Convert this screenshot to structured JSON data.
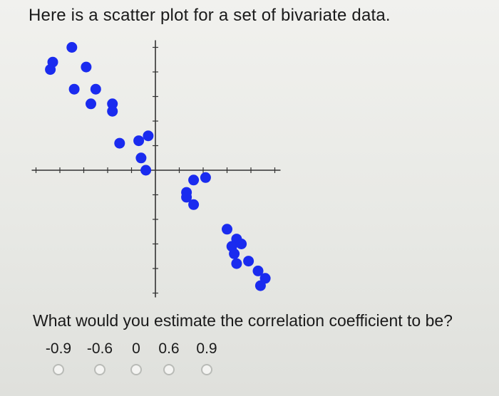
{
  "prompt_text": "Here is a scatter plot for a set of bivariate data.",
  "question": {
    "text": "What would you estimate the correlation coefficient to be?",
    "options": [
      "-0.9",
      "-0.6",
      "0",
      "0.6",
      "0.9"
    ]
  },
  "colors": {
    "point": "#1a2bef",
    "axis": "#333333",
    "radio_border": "#b9bbb7"
  },
  "chart_data": {
    "type": "scatter",
    "title": "",
    "xlabel": "",
    "ylabel": "",
    "grid": false,
    "xlim": [
      -5,
      5
    ],
    "ylim": [
      -5,
      5
    ],
    "points": [
      {
        "x": -3.5,
        "y": 5.0
      },
      {
        "x": -4.3,
        "y": 4.4
      },
      {
        "x": -4.4,
        "y": 4.1
      },
      {
        "x": -2.9,
        "y": 4.2
      },
      {
        "x": -3.4,
        "y": 3.3
      },
      {
        "x": -2.5,
        "y": 3.3
      },
      {
        "x": -2.7,
        "y": 2.7
      },
      {
        "x": -1.8,
        "y": 2.7
      },
      {
        "x": -1.8,
        "y": 2.4
      },
      {
        "x": -1.5,
        "y": 1.1
      },
      {
        "x": -0.7,
        "y": 1.2
      },
      {
        "x": -0.3,
        "y": 1.4
      },
      {
        "x": -0.6,
        "y": 0.5
      },
      {
        "x": -0.4,
        "y": 0.0
      },
      {
        "x": 1.6,
        "y": -0.4
      },
      {
        "x": 2.1,
        "y": -0.3
      },
      {
        "x": 1.3,
        "y": -0.9
      },
      {
        "x": 1.3,
        "y": -1.1
      },
      {
        "x": 1.6,
        "y": -1.4
      },
      {
        "x": 3.0,
        "y": -2.4
      },
      {
        "x": 3.4,
        "y": -2.8
      },
      {
        "x": 3.2,
        "y": -3.1
      },
      {
        "x": 3.6,
        "y": -3.0
      },
      {
        "x": 3.3,
        "y": -3.4
      },
      {
        "x": 3.4,
        "y": -3.8
      },
      {
        "x": 3.9,
        "y": -3.7
      },
      {
        "x": 4.3,
        "y": -4.1
      },
      {
        "x": 4.6,
        "y": -4.4
      },
      {
        "x": 4.4,
        "y": -4.7
      }
    ]
  }
}
